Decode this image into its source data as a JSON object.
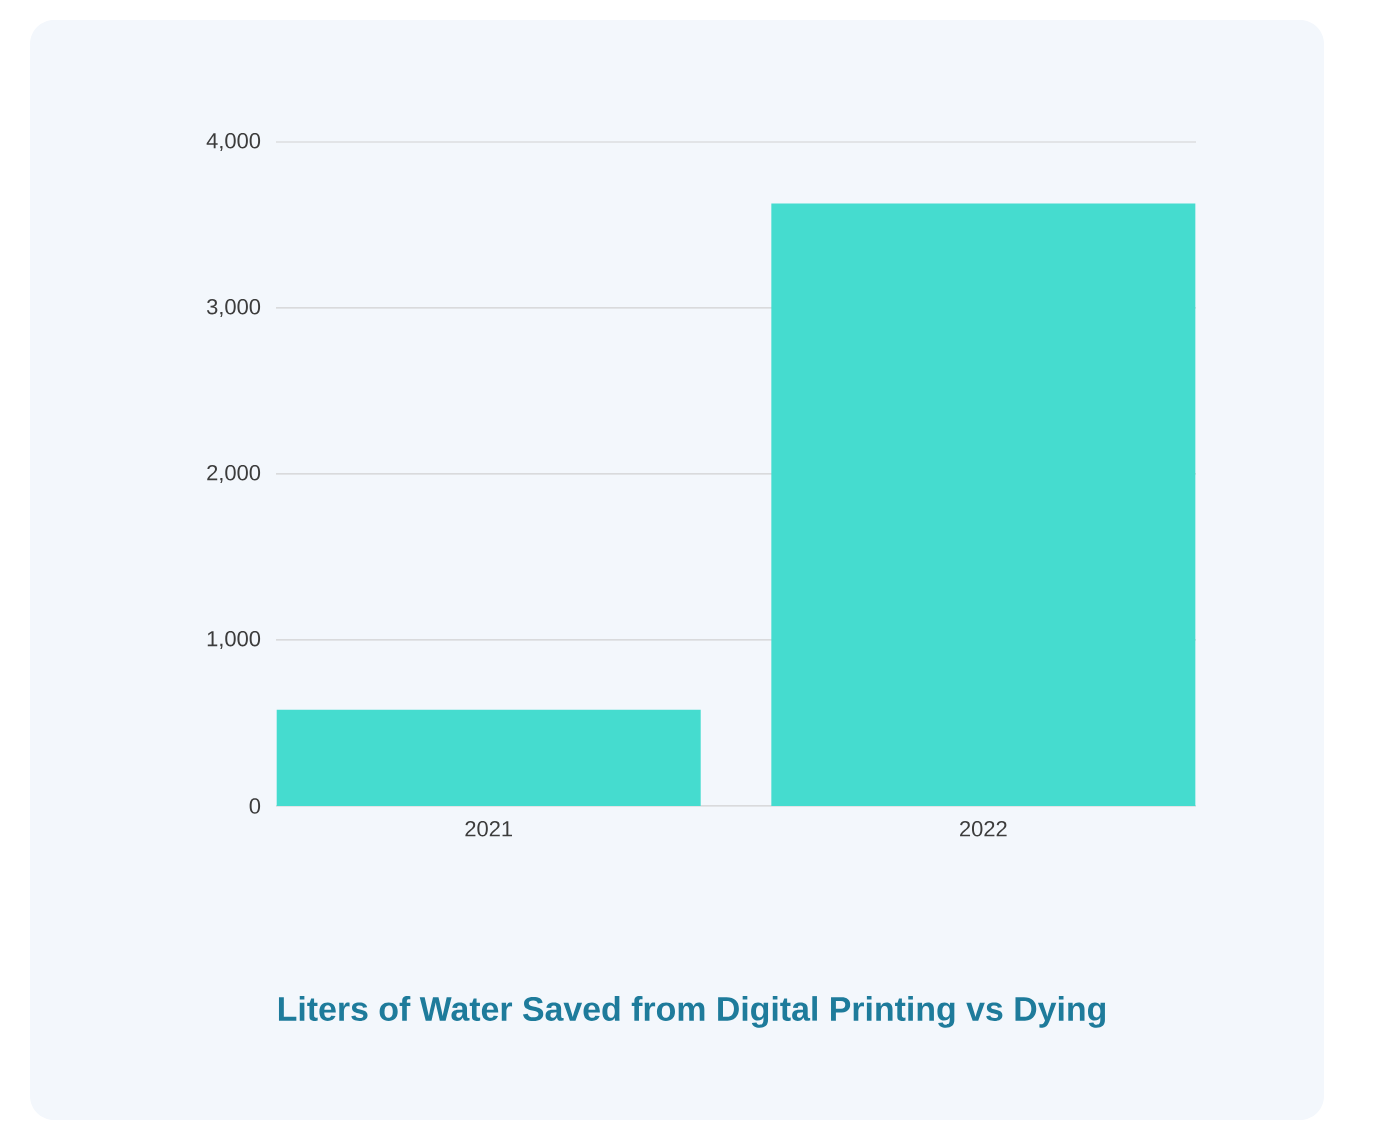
{
  "chart_data": {
    "type": "bar",
    "title": "Liters of Water Saved from Digital Printing vs Dying",
    "categories": [
      "2021",
      "2022"
    ],
    "values": [
      580,
      3630
    ],
    "color": "#45dccf",
    "ylim": [
      0,
      4000
    ],
    "yticks": [
      0,
      {
        "value": 1000,
        "label": "1,000"
      },
      {
        "value": 2000,
        "label": "2,000"
      },
      {
        "value": 3000,
        "label": "3,000"
      },
      {
        "value": 4000,
        "label": "4,000"
      }
    ],
    "grid": "y"
  }
}
